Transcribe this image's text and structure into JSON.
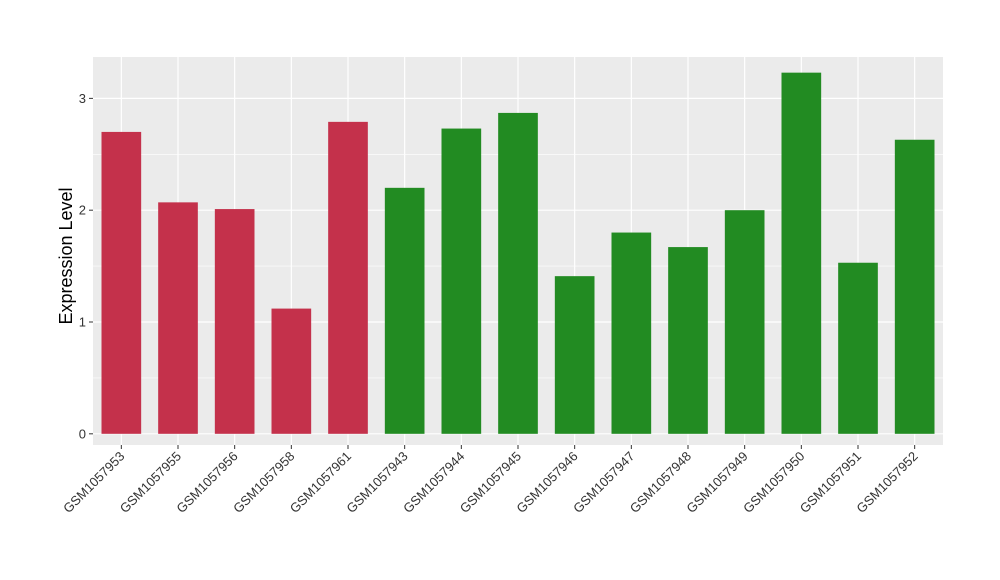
{
  "chart_data": {
    "type": "bar",
    "title": "",
    "xlabel": "",
    "ylabel": "Expression Level",
    "ylim": [
      -0.1,
      3.37
    ],
    "yticks": [
      0,
      1,
      2,
      3
    ],
    "grid": true,
    "legend": "none",
    "colors": {
      "panel": "#EBEBEB",
      "grid": "#FFFFFF",
      "group_a": "#C4314B",
      "group_b": "#228B22"
    },
    "categories": [
      "GSM1057953",
      "GSM1057955",
      "GSM1057956",
      "GSM1057958",
      "GSM1057961",
      "GSM1057943",
      "GSM1057944",
      "GSM1057945",
      "GSM1057946",
      "GSM1057947",
      "GSM1057948",
      "GSM1057949",
      "GSM1057950",
      "GSM1057951",
      "GSM1057952"
    ],
    "values": [
      2.7,
      2.07,
      2.01,
      1.12,
      2.79,
      2.2,
      2.73,
      2.87,
      1.41,
      1.8,
      1.67,
      2.0,
      3.23,
      1.53,
      2.63
    ],
    "bar_colors": [
      "#C4314B",
      "#C4314B",
      "#C4314B",
      "#C4314B",
      "#C4314B",
      "#228B22",
      "#228B22",
      "#228B22",
      "#228B22",
      "#228B22",
      "#228B22",
      "#228B22",
      "#228B22",
      "#228B22",
      "#228B22"
    ]
  }
}
